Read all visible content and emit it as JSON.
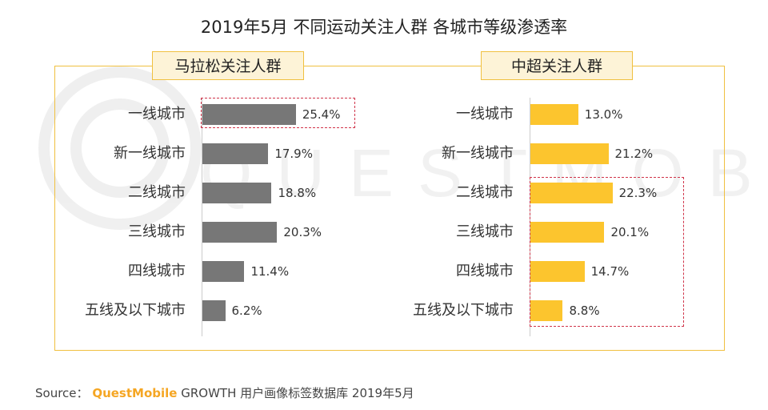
{
  "title": "2019年5月 不同运动关注人群 各城市等级渗透率",
  "colors": {
    "left_bar": "#777777",
    "right_bar": "#fcc52e",
    "frame": "#f0c040",
    "highlight": "#d0344a"
  },
  "watermark": {
    "text": "QUESTMOBILE"
  },
  "source": {
    "prefix": "Source：",
    "brand": "QuestMobile",
    "rest": "GROWTH 用户画像标签数据库 2019年5月"
  },
  "chart_data": [
    {
      "type": "bar",
      "orientation": "horizontal",
      "title": "马拉松关注人群",
      "categories": [
        "一线城市",
        "新一线城市",
        "二线城市",
        "三线城市",
        "四线城市",
        "五线及以下城市"
      ],
      "values": [
        25.4,
        17.9,
        18.8,
        20.3,
        11.4,
        6.2
      ],
      "labels": [
        "25.4%",
        "17.9%",
        "18.8%",
        "20.3%",
        "11.4%",
        "6.2%"
      ],
      "unit": "%",
      "highlighted": [
        "一线城市"
      ]
    },
    {
      "type": "bar",
      "orientation": "horizontal",
      "title": "中超关注人群",
      "categories": [
        "一线城市",
        "新一线城市",
        "二线城市",
        "三线城市",
        "四线城市",
        "五线及以下城市"
      ],
      "values": [
        13.0,
        21.2,
        22.3,
        20.1,
        14.7,
        8.8
      ],
      "labels": [
        "13.0%",
        "21.2%",
        "22.3%",
        "20.1%",
        "14.7%",
        "8.8%"
      ],
      "unit": "%",
      "highlighted": [
        "二线城市",
        "三线城市",
        "四线城市",
        "五线及以下城市"
      ]
    }
  ]
}
